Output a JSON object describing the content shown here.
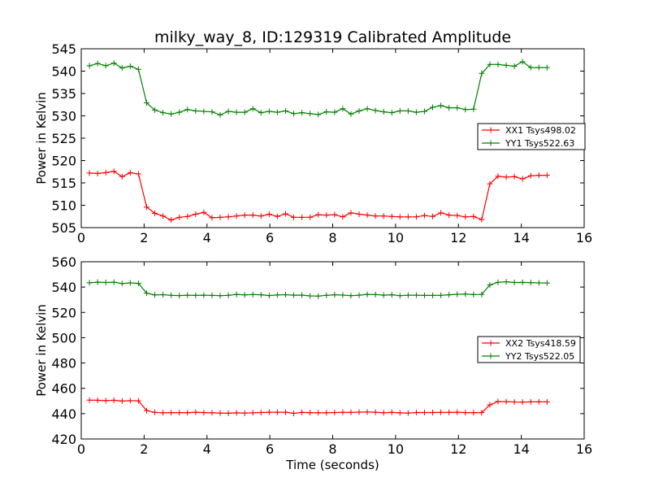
{
  "colors": {
    "xx": "#ff0000",
    "yy": "#008000",
    "axis": "#000000",
    "background": "#ffffff"
  },
  "chart_data": [
    {
      "type": "line",
      "title": "milky_way_8, ID:129319 Calibrated Amplitude",
      "xlabel": "",
      "ylabel": "Power in Kelvin",
      "xlim": [
        0,
        16
      ],
      "ylim": [
        505,
        545
      ],
      "xticks": [
        0,
        2,
        4,
        6,
        8,
        10,
        12,
        14,
        16
      ],
      "yticks": [
        505,
        510,
        515,
        520,
        525,
        530,
        535,
        540,
        545
      ],
      "grid": false,
      "legend_position": "center-right",
      "series": [
        {
          "name": "XX1 Tsys498.02",
          "color": "#ff0000",
          "marker": "+",
          "x": [
            0.26,
            0.52,
            0.78,
            1.04,
            1.3,
            1.56,
            1.82,
            2.08,
            2.34,
            2.6,
            2.86,
            3.12,
            3.38,
            3.64,
            3.9,
            4.16,
            4.42,
            4.68,
            4.94,
            5.2,
            5.46,
            5.72,
            5.98,
            6.24,
            6.5,
            6.76,
            7.02,
            7.28,
            7.54,
            7.8,
            8.06,
            8.32,
            8.58,
            8.84,
            9.1,
            9.36,
            9.62,
            9.88,
            10.14,
            10.4,
            10.66,
            10.92,
            11.18,
            11.44,
            11.7,
            11.96,
            12.22,
            12.48,
            12.74,
            13.0,
            13.26,
            13.52,
            13.78,
            14.04,
            14.3,
            14.56,
            14.82
          ],
          "y": [
            517.2,
            517.1,
            517.3,
            517.6,
            516.4,
            517.3,
            517.0,
            509.6,
            508.2,
            507.6,
            506.7,
            507.3,
            507.5,
            508.0,
            508.4,
            507.2,
            507.3,
            507.4,
            507.6,
            507.8,
            507.8,
            507.6,
            508.0,
            507.5,
            508.1,
            507.3,
            507.3,
            507.3,
            507.9,
            507.8,
            507.9,
            507.4,
            508.3,
            508.0,
            507.8,
            507.6,
            507.6,
            507.5,
            507.4,
            507.4,
            507.4,
            507.7,
            507.5,
            508.3,
            507.8,
            507.7,
            507.4,
            507.5,
            506.8,
            514.8,
            516.5,
            516.3,
            516.4,
            515.9,
            516.6,
            516.7,
            516.7
          ]
        },
        {
          "name": "YY1 Tsys522.63",
          "color": "#008000",
          "marker": "+",
          "x": [
            0.26,
            0.52,
            0.78,
            1.04,
            1.3,
            1.56,
            1.82,
            2.08,
            2.34,
            2.6,
            2.86,
            3.12,
            3.38,
            3.64,
            3.9,
            4.16,
            4.42,
            4.68,
            4.94,
            5.2,
            5.46,
            5.72,
            5.98,
            6.24,
            6.5,
            6.76,
            7.02,
            7.28,
            7.54,
            7.8,
            8.06,
            8.32,
            8.58,
            8.84,
            9.1,
            9.36,
            9.62,
            9.88,
            10.14,
            10.4,
            10.66,
            10.92,
            11.18,
            11.44,
            11.7,
            11.96,
            12.22,
            12.48,
            12.74,
            13.0,
            13.26,
            13.52,
            13.78,
            14.04,
            14.3,
            14.56,
            14.82
          ],
          "y": [
            541.2,
            541.7,
            541.2,
            541.8,
            540.7,
            541.1,
            540.4,
            532.9,
            531.3,
            530.7,
            530.4,
            530.8,
            531.4,
            531.1,
            531.0,
            530.9,
            530.2,
            531.0,
            530.8,
            530.8,
            531.6,
            530.7,
            531.0,
            530.8,
            531.1,
            530.5,
            530.7,
            530.5,
            530.3,
            530.9,
            530.8,
            531.6,
            530.4,
            531.1,
            531.6,
            531.2,
            530.9,
            530.7,
            531.1,
            531.1,
            530.8,
            531.0,
            531.9,
            532.3,
            531.8,
            531.8,
            531.4,
            531.5,
            539.5,
            541.5,
            541.5,
            541.3,
            541.1,
            542.1,
            540.8,
            540.8,
            540.8
          ]
        }
      ]
    },
    {
      "type": "line",
      "title": "",
      "xlabel": "Time (seconds)",
      "ylabel": "Power in Kelvin",
      "xlim": [
        0,
        16
      ],
      "ylim": [
        420,
        560
      ],
      "xticks": [
        0,
        2,
        4,
        6,
        8,
        10,
        12,
        14,
        16
      ],
      "yticks": [
        420,
        440,
        460,
        480,
        500,
        520,
        540,
        560
      ],
      "grid": false,
      "legend_position": "center-right",
      "series": [
        {
          "name": "XX2 Tsys418.59",
          "color": "#ff0000",
          "marker": "+",
          "x": [
            0.26,
            0.52,
            0.78,
            1.04,
            1.3,
            1.56,
            1.82,
            2.08,
            2.34,
            2.6,
            2.86,
            3.12,
            3.38,
            3.64,
            3.9,
            4.16,
            4.42,
            4.68,
            4.94,
            5.2,
            5.46,
            5.72,
            5.98,
            6.24,
            6.5,
            6.76,
            7.02,
            7.28,
            7.54,
            7.8,
            8.06,
            8.32,
            8.58,
            8.84,
            9.1,
            9.36,
            9.62,
            9.88,
            10.14,
            10.4,
            10.66,
            10.92,
            11.18,
            11.44,
            11.7,
            11.96,
            12.22,
            12.48,
            12.74,
            13.0,
            13.26,
            13.52,
            13.78,
            14.04,
            14.3,
            14.56,
            14.82
          ],
          "y": [
            450.7,
            450.6,
            450.3,
            450.6,
            449.9,
            450.3,
            450.1,
            442.4,
            441.0,
            440.7,
            440.8,
            440.8,
            440.8,
            441.1,
            440.8,
            440.7,
            440.5,
            440.3,
            440.6,
            440.4,
            440.7,
            440.9,
            441.1,
            441.1,
            441.1,
            440.2,
            441.0,
            440.8,
            440.7,
            440.7,
            440.9,
            441.0,
            441.0,
            441.2,
            441.3,
            441.1,
            440.7,
            441.0,
            440.6,
            440.5,
            440.9,
            440.9,
            440.9,
            441.0,
            441.0,
            441.1,
            440.8,
            440.8,
            440.8,
            447.0,
            449.6,
            449.5,
            449.2,
            449.1,
            449.3,
            449.4,
            449.3
          ]
        },
        {
          "name": "YY2 Tsys522.05",
          "color": "#008000",
          "marker": "+",
          "x": [
            0.26,
            0.52,
            0.78,
            1.04,
            1.3,
            1.56,
            1.82,
            2.08,
            2.34,
            2.6,
            2.86,
            3.12,
            3.38,
            3.64,
            3.9,
            4.16,
            4.42,
            4.68,
            4.94,
            5.2,
            5.46,
            5.72,
            5.98,
            6.24,
            6.5,
            6.76,
            7.02,
            7.28,
            7.54,
            7.8,
            8.06,
            8.32,
            8.58,
            8.84,
            9.1,
            9.36,
            9.62,
            9.88,
            10.14,
            10.4,
            10.66,
            10.92,
            11.18,
            11.44,
            11.7,
            11.96,
            12.22,
            12.48,
            12.74,
            13.0,
            13.26,
            13.52,
            13.78,
            14.04,
            14.3,
            14.56,
            14.82
          ],
          "y": [
            543.4,
            543.9,
            543.6,
            543.9,
            542.8,
            543.3,
            542.9,
            535.2,
            533.8,
            534.0,
            533.5,
            533.3,
            533.6,
            533.4,
            533.6,
            533.4,
            533.2,
            533.5,
            534.2,
            533.8,
            534.1,
            533.9,
            533.3,
            533.8,
            534.0,
            533.6,
            533.7,
            533.0,
            532.9,
            533.5,
            533.9,
            533.7,
            533.2,
            533.6,
            534.2,
            534.1,
            533.6,
            533.9,
            533.2,
            533.6,
            533.6,
            533.4,
            533.4,
            533.5,
            533.9,
            534.3,
            534.5,
            534.1,
            534.2,
            541.7,
            543.8,
            544.2,
            543.6,
            543.7,
            543.5,
            543.3,
            543.2
          ]
        }
      ]
    }
  ]
}
